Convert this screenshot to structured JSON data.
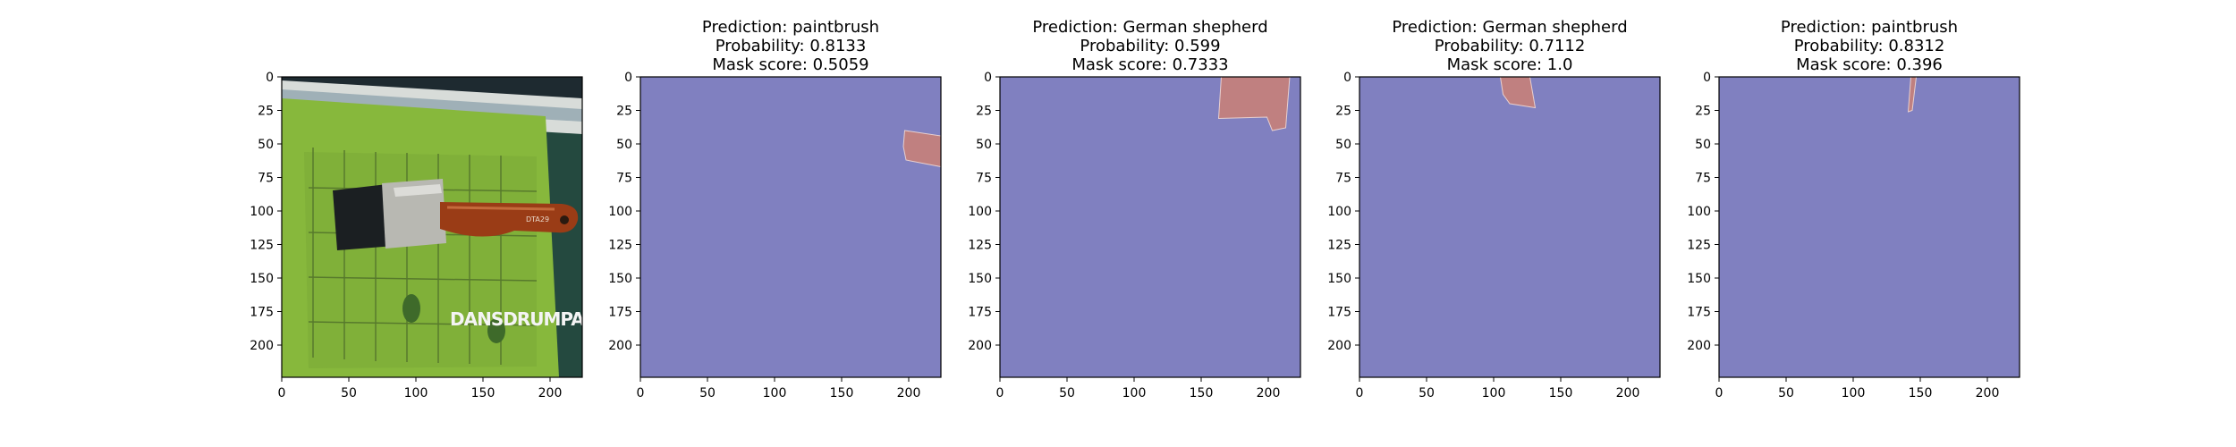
{
  "chart_data": [
    {
      "type": "image",
      "title": [],
      "xlim": [
        0,
        224
      ],
      "ylim": [
        224,
        0
      ],
      "xticks": [
        0,
        50,
        100,
        150,
        200
      ],
      "yticks": [
        0,
        25,
        50,
        75,
        100,
        125,
        150,
        175,
        200
      ],
      "image_text": "DANSDRUMPAGE",
      "colors": {
        "board": "#87b83c",
        "background": "#24493f",
        "handle": "#9a3c16",
        "bristles": "#1b1f22"
      }
    },
    {
      "type": "heatmap",
      "title": [
        "Prediction: paintbrush",
        "Probability: 0.8133",
        "Mask score: 0.5059"
      ],
      "xlim": [
        0,
        224
      ],
      "ylim": [
        224,
        0
      ],
      "xticks": [
        0,
        50,
        100,
        150,
        200
      ],
      "yticks": [
        0,
        25,
        50,
        75,
        100,
        125,
        150,
        175,
        200
      ],
      "background_color": "#8080c0",
      "mask_color": "#c08080",
      "mask": [
        [
          197,
          40
        ],
        [
          224,
          44
        ],
        [
          224,
          67
        ],
        [
          198,
          62
        ],
        [
          196,
          52
        ]
      ]
    },
    {
      "type": "heatmap",
      "title": [
        "Prediction: German shepherd",
        "Probability: 0.599",
        "Mask score: 0.7333"
      ],
      "xlim": [
        0,
        224
      ],
      "ylim": [
        224,
        0
      ],
      "xticks": [
        0,
        50,
        100,
        150,
        200
      ],
      "yticks": [
        0,
        25,
        50,
        75,
        100,
        125,
        150,
        175,
        200
      ],
      "background_color": "#8080c0",
      "mask_color": "#c08080",
      "mask": [
        [
          165,
          0
        ],
        [
          216,
          0
        ],
        [
          213,
          38
        ],
        [
          203,
          40
        ],
        [
          199,
          30
        ],
        [
          163,
          31
        ]
      ]
    },
    {
      "type": "heatmap",
      "title": [
        "Prediction: German shepherd",
        "Probability: 0.7112",
        "Mask score: 1.0"
      ],
      "xlim": [
        0,
        224
      ],
      "ylim": [
        224,
        0
      ],
      "xticks": [
        0,
        50,
        100,
        150,
        200
      ],
      "yticks": [
        0,
        25,
        50,
        75,
        100,
        125,
        150,
        175,
        200
      ],
      "background_color": "#8080c0",
      "mask_color": "#c08080",
      "mask": [
        [
          105,
          0
        ],
        [
          127,
          0
        ],
        [
          131,
          23
        ],
        [
          112,
          20
        ],
        [
          107,
          13
        ]
      ]
    },
    {
      "type": "heatmap",
      "title": [
        "Prediction: paintbrush",
        "Probability: 0.8312",
        "Mask score: 0.396"
      ],
      "xlim": [
        0,
        224
      ],
      "ylim": [
        224,
        0
      ],
      "xticks": [
        0,
        50,
        100,
        150,
        200
      ],
      "yticks": [
        0,
        25,
        50,
        75,
        100,
        125,
        150,
        175,
        200
      ],
      "background_color": "#8080c0",
      "mask_color": "#c08080",
      "mask": [
        [
          143,
          0
        ],
        [
          147,
          0
        ],
        [
          144,
          25
        ],
        [
          141,
          26
        ]
      ]
    }
  ]
}
